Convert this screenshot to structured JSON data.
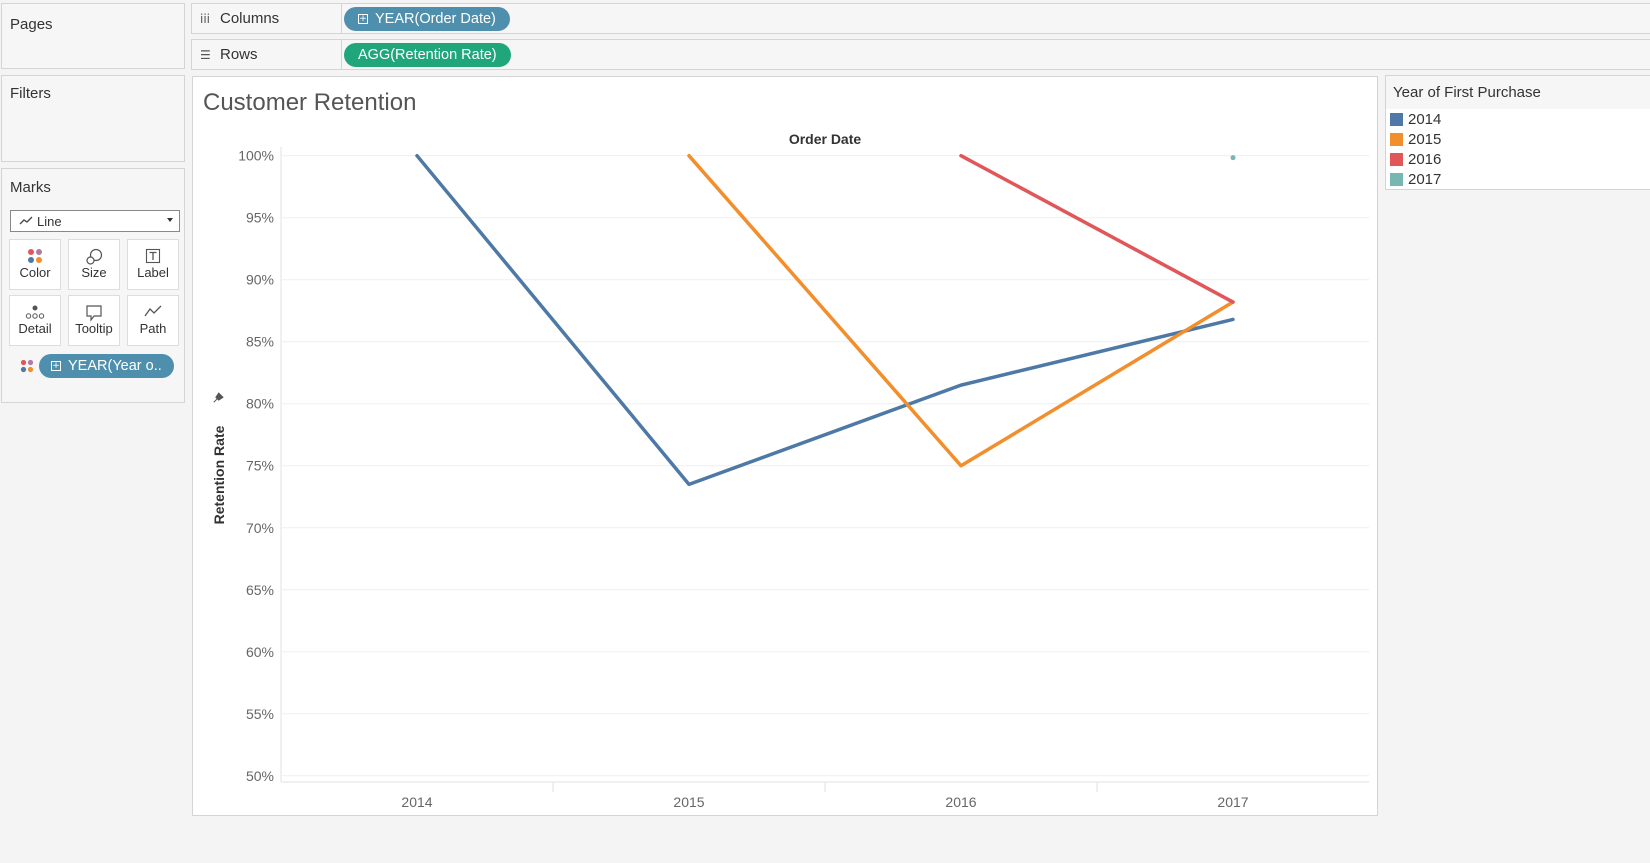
{
  "pages_panel": {
    "title": "Pages"
  },
  "filters_panel": {
    "title": "Filters"
  },
  "marks_panel": {
    "title": "Marks",
    "mark_type": "Line",
    "buttons": {
      "color": "Color",
      "size": "Size",
      "label": "Label",
      "detail": "Detail",
      "tooltip": "Tooltip",
      "path": "Path"
    },
    "color_pill": "YEAR(Year o.."
  },
  "columns_shelf": {
    "label": "Columns",
    "pill": "YEAR(Order Date)"
  },
  "rows_shelf": {
    "label": "Rows",
    "pill": "AGG(Retention Rate)"
  },
  "viz": {
    "title": "Customer Retention"
  },
  "legend": {
    "title": "Year of First Purchase",
    "items": [
      {
        "label": "2014",
        "color": "#4e79a7"
      },
      {
        "label": "2015",
        "color": "#f28e2b"
      },
      {
        "label": "2016",
        "color": "#e15759"
      },
      {
        "label": "2017",
        "color": "#76b7b2"
      }
    ]
  },
  "chart_data": {
    "type": "line",
    "title": "Customer Retention",
    "xlabel": "Order Date",
    "ylabel": "Retention Rate",
    "x": [
      "2014",
      "2015",
      "2016",
      "2017"
    ],
    "ylim": [
      0.495,
      1.007
    ],
    "yticks": [
      {
        "value": 1.0,
        "label": "100%"
      },
      {
        "value": 0.95,
        "label": "95%"
      },
      {
        "value": 0.9,
        "label": "90%"
      },
      {
        "value": 0.85,
        "label": "85%"
      },
      {
        "value": 0.8,
        "label": "80%"
      },
      {
        "value": 0.75,
        "label": "75%"
      },
      {
        "value": 0.7,
        "label": "70%"
      },
      {
        "value": 0.65,
        "label": "65%"
      },
      {
        "value": 0.6,
        "label": "60%"
      },
      {
        "value": 0.55,
        "label": "55%"
      },
      {
        "value": 0.5,
        "label": "50%"
      }
    ],
    "grid": true,
    "legend": "right",
    "series": [
      {
        "name": "2014",
        "color": "#4e79a7",
        "values": [
          1.0,
          0.735,
          0.815,
          0.868
        ]
      },
      {
        "name": "2015",
        "color": "#f28e2b",
        "values": [
          null,
          1.0,
          0.75,
          0.882
        ]
      },
      {
        "name": "2016",
        "color": "#e15759",
        "values": [
          null,
          null,
          1.0,
          0.882
        ]
      },
      {
        "name": "2017",
        "color": "#76b7b2",
        "values": [
          null,
          null,
          null,
          1.0
        ]
      }
    ]
  }
}
